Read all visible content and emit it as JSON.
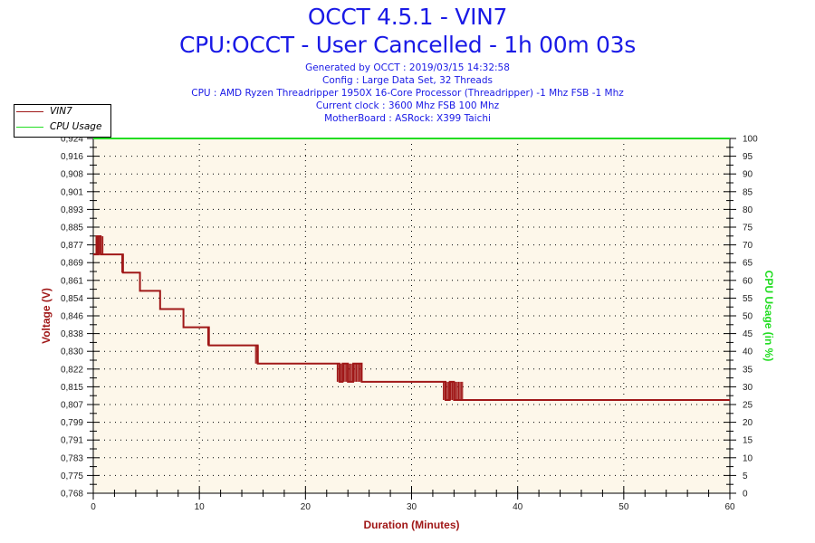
{
  "header": {
    "title": "OCCT 4.5.1 - VIN7",
    "subtitle": "CPU:OCCT - User Cancelled - 1h 00m 03s",
    "info_lines": [
      "Generated by OCCT : 2019/03/15 14:32:58",
      "Config : Large Data Set, 32 Threads",
      "CPU : AMD Ryzen Threadripper 1950X 16-Core Processor (Threadripper) -1 Mhz FSB -1 Mhz",
      "Current clock : 3600 Mhz FSB 100 Mhz",
      "MotherBoard : ASRock: X399 Taichi"
    ]
  },
  "legend": {
    "items": [
      {
        "label": "VIN7",
        "color": "#a01818"
      },
      {
        "label": "CPU Usage",
        "color": "#22dd22"
      }
    ]
  },
  "colors": {
    "plot_background": "#fdf7ea",
    "title": "#1a1ae6",
    "voltage": "#a01818",
    "cpu": "#22dd22"
  },
  "chart_data": {
    "type": "line",
    "title": "OCCT 4.5.1 - VIN7",
    "subtitle": "CPU:OCCT - User Cancelled - 1h 00m 03s",
    "xlabel": "Duration (Minutes)",
    "ylabel": "Voltage (V)",
    "ylabel_right": "CPU Usage (in %)",
    "xlim": [
      0,
      60
    ],
    "ylim": [
      0.768,
      0.924
    ],
    "ylim_right": [
      0,
      100
    ],
    "x_ticks": [
      0,
      10,
      20,
      30,
      40,
      50,
      60
    ],
    "y_ticks": [
      "0.768",
      "0.775",
      "0.783",
      "0.791",
      "0.799",
      "0.807",
      "0.815",
      "0.822",
      "0.830",
      "0.838",
      "0.846",
      "0.854",
      "0.861",
      "0.869",
      "0.877",
      "0.885",
      "0.893",
      "0.901",
      "0.908",
      "0.916",
      "0.924"
    ],
    "y_ticks_right": [
      0,
      5,
      10,
      15,
      20,
      25,
      30,
      35,
      40,
      45,
      50,
      55,
      60,
      65,
      70,
      75,
      80,
      85,
      90,
      95,
      100
    ],
    "grid": true,
    "legend_position": "top-left",
    "series": [
      {
        "name": "VIN7",
        "axis": "left",
        "step": true,
        "x": [
          0,
          0.3,
          0.4,
          0.5,
          0.7,
          0.8,
          2.8,
          4.4,
          6.3,
          8.5,
          10.9,
          15.5,
          23.2,
          23.5,
          24.0,
          24.5,
          25.3,
          33.2,
          33.6,
          34.0,
          34.7,
          60
        ],
        "values": [
          0.873,
          0.881,
          0.873,
          0.881,
          0.873,
          0.873,
          0.865,
          0.857,
          0.849,
          0.841,
          0.833,
          0.825,
          0.817,
          0.825,
          0.817,
          0.825,
          0.817,
          0.809,
          0.817,
          0.809,
          0.809,
          0.809
        ]
      },
      {
        "name": "CPU Usage",
        "axis": "right",
        "x": [
          0,
          60
        ],
        "values": [
          100,
          100
        ]
      }
    ]
  }
}
